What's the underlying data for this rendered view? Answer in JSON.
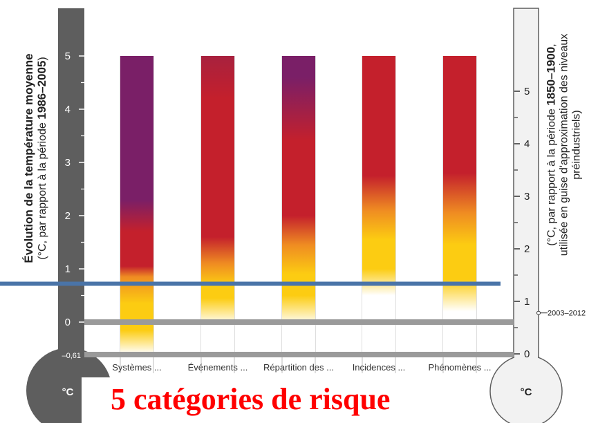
{
  "colors": {
    "thermometer_left": "#5e5e5e",
    "thermometer_right": "#f2f2f2",
    "purple": "#7a1f67",
    "red": "#c4202c",
    "orange": "#ef8c22",
    "yellow": "#fccc12",
    "overlay_line": "#4a74a8",
    "baseline": "#9a9a9a",
    "caption": "#ff0000"
  },
  "chart_data": {
    "type": "bar",
    "title": "",
    "left_axis": {
      "label_bold": "Évolution de la température moyenne",
      "label_line2_prefix": "(°C, par rapport à la période ",
      "label_line2_bold": "1986–2005",
      "label_line2_suffix": ")",
      "ticks": [
        0,
        1,
        2,
        3,
        4,
        5
      ],
      "extra_tick": "–0,61",
      "range": [
        -0.61,
        5.0
      ],
      "unit": "°C"
    },
    "right_axis": {
      "label_line1_prefix": "(°C, par rapport à la période ",
      "label_line1_bold": "1850–1900",
      "label_line1_suffix": ",",
      "label_line2": "utilisée en guise d'approximation des niveaux",
      "label_line3": "préindustriels)",
      "ticks": [
        0,
        1,
        2,
        3,
        4,
        5
      ],
      "unit": "°C",
      "marker_label": "2003–2012",
      "marker_value": 0.78
    },
    "categories": [
      "Systèmes ...",
      "Événements ...",
      "Répartition des ...",
      "Incidences ...",
      "Phénomènes ..."
    ],
    "series": [
      {
        "stops": [
          {
            "v": -0.61,
            "color": "white"
          },
          {
            "v": -0.15,
            "color": "yellow"
          },
          {
            "v": 0.35,
            "color": "yellow"
          },
          {
            "v": 0.85,
            "color": "orange"
          },
          {
            "v": 1.05,
            "color": "red"
          },
          {
            "v": 1.7,
            "color": "red"
          },
          {
            "v": 2.3,
            "color": "purple"
          },
          {
            "v": 5.0,
            "color": "purple"
          }
        ]
      },
      {
        "stops": [
          {
            "v": -0.05,
            "color": "white"
          },
          {
            "v": 0.45,
            "color": "yellow"
          },
          {
            "v": 0.7,
            "color": "yellow"
          },
          {
            "v": 1.1,
            "color": "orange"
          },
          {
            "v": 1.6,
            "color": "red"
          },
          {
            "v": 4.2,
            "color": "red"
          },
          {
            "v": 5.0,
            "color": "red_purple"
          }
        ]
      },
      {
        "stops": [
          {
            "v": -0.05,
            "color": "white"
          },
          {
            "v": 0.5,
            "color": "yellow"
          },
          {
            "v": 0.9,
            "color": "yellow"
          },
          {
            "v": 1.45,
            "color": "orange"
          },
          {
            "v": 2.0,
            "color": "red"
          },
          {
            "v": 3.4,
            "color": "red"
          },
          {
            "v": 4.6,
            "color": "purple"
          },
          {
            "v": 5.0,
            "color": "purple"
          }
        ]
      },
      {
        "stops": [
          {
            "v": 0.5,
            "color": "white"
          },
          {
            "v": 1.0,
            "color": "yellow"
          },
          {
            "v": 1.55,
            "color": "yellow"
          },
          {
            "v": 2.1,
            "color": "orange"
          },
          {
            "v": 2.75,
            "color": "red"
          },
          {
            "v": 5.0,
            "color": "red"
          }
        ]
      },
      {
        "stops": [
          {
            "v": 0.2,
            "color": "white"
          },
          {
            "v": 0.8,
            "color": "yellow"
          },
          {
            "v": 1.45,
            "color": "yellow"
          },
          {
            "v": 2.05,
            "color": "orange"
          },
          {
            "v": 2.8,
            "color": "red"
          },
          {
            "v": 5.0,
            "color": "red"
          }
        ]
      }
    ],
    "overlay_line_value": 0.72,
    "baselines": [
      0,
      -0.61
    ]
  },
  "caption": "5 catégories de risque"
}
